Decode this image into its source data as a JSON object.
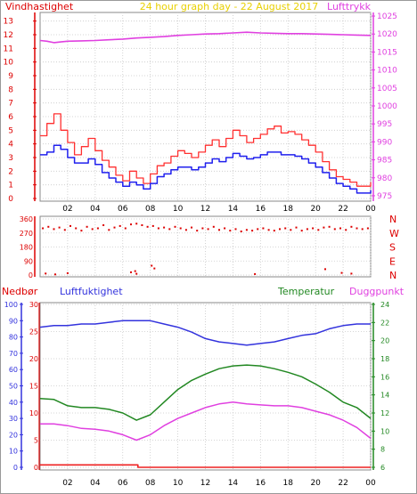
{
  "header": {
    "left_label": "Vindhastighet",
    "title": "24 hour graph day - 22 August 2017",
    "right_label": "Lufttrykk"
  },
  "labels": {
    "precip": "Nedbør",
    "humidity": "Luftfuktighet",
    "temperature": "Temperatur",
    "dewpoint": "Duggpunkt"
  },
  "colors": {
    "wind_axis": "#dd0000",
    "pressure": "#e040e0",
    "gust": "#ff3030",
    "wind_avg": "#2020ee",
    "direction": "#dd0000",
    "humidity": "#3333dd",
    "temperature": "#228822",
    "dewpoint": "#e040e0",
    "precip": "#ee2222",
    "title": "#e8d000",
    "grid": "#c9c9c9"
  },
  "chart_data": [
    {
      "type": "line",
      "title": "24 hour graph day - 22 August 2017",
      "x_ticks": [
        "02",
        "04",
        "06",
        "08",
        "10",
        "12",
        "14",
        "16",
        "18",
        "20",
        "22",
        "00"
      ],
      "xlim": [
        0,
        24
      ],
      "y_left": {
        "label": "Vindhastighet",
        "ticks": [
          0,
          1,
          2,
          3,
          4,
          5,
          6,
          7,
          8,
          9,
          10,
          11,
          12,
          13
        ],
        "ylim": [
          0,
          13.5
        ]
      },
      "y_right": {
        "label": "Lufttrykk",
        "ticks": [
          975,
          980,
          985,
          990,
          995,
          1000,
          1005,
          1010,
          1015,
          1020,
          1025
        ],
        "ylim": [
          973.5,
          1026
        ]
      },
      "series": [
        {
          "name": "Lufttrykk",
          "axis": "right",
          "x": [
            0,
            0.5,
            1,
            1.5,
            2,
            3,
            4,
            5,
            6,
            7,
            8,
            9,
            10,
            11,
            12,
            13,
            14,
            15,
            16,
            17,
            18,
            19,
            20,
            21,
            22,
            23,
            24
          ],
          "values": [
            1018.2,
            1018.0,
            1017.6,
            1017.8,
            1018.0,
            1018.1,
            1018.2,
            1018.4,
            1018.6,
            1018.9,
            1019.1,
            1019.3,
            1019.6,
            1019.8,
            1020.0,
            1020.1,
            1020.3,
            1020.5,
            1020.3,
            1020.2,
            1020.1,
            1020.1,
            1020.0,
            1019.9,
            1019.8,
            1019.7,
            1019.6
          ]
        },
        {
          "name": "Vindkast",
          "axis": "left",
          "x": [
            0,
            0.5,
            1,
            1.5,
            2,
            2.5,
            3,
            3.5,
            4,
            4.5,
            5,
            5.5,
            6,
            6.5,
            7,
            7.5,
            8,
            8.5,
            9,
            9.5,
            10,
            10.5,
            11,
            11.5,
            12,
            12.5,
            13,
            13.5,
            14,
            14.5,
            15,
            15.5,
            16,
            16.5,
            17,
            17.5,
            18,
            18.5,
            19,
            19.5,
            20,
            20.5,
            21,
            21.5,
            22,
            22.5,
            23,
            23.5,
            24
          ],
          "values": [
            4.6,
            5.5,
            6.2,
            5.0,
            4.1,
            3.2,
            3.8,
            4.4,
            3.5,
            2.8,
            2.3,
            1.7,
            1.3,
            2.0,
            1.5,
            1.1,
            1.8,
            2.4,
            2.6,
            3.1,
            3.5,
            3.3,
            3.0,
            3.4,
            3.9,
            4.3,
            3.8,
            4.4,
            5.0,
            4.6,
            4.1,
            4.4,
            4.7,
            5.1,
            5.3,
            4.8,
            4.9,
            4.7,
            4.3,
            3.9,
            3.4,
            2.7,
            2.1,
            1.6,
            1.4,
            1.2,
            0.9,
            0.9,
            1.2
          ]
        },
        {
          "name": "Middelvind",
          "axis": "left",
          "x": [
            0,
            0.5,
            1,
            1.5,
            2,
            2.5,
            3,
            3.5,
            4,
            4.5,
            5,
            5.5,
            6,
            6.5,
            7,
            7.5,
            8,
            8.5,
            9,
            9.5,
            10,
            10.5,
            11,
            11.5,
            12,
            12.5,
            13,
            13.5,
            14,
            14.5,
            15,
            15.5,
            16,
            16.5,
            17,
            17.5,
            18,
            18.5,
            19,
            19.5,
            20,
            20.5,
            21,
            21.5,
            22,
            22.5,
            23,
            23.5,
            24
          ],
          "values": [
            3.2,
            3.4,
            3.9,
            3.6,
            3.0,
            2.6,
            2.6,
            2.9,
            2.5,
            1.9,
            1.5,
            1.2,
            0.9,
            1.2,
            1.0,
            0.7,
            1.1,
            1.6,
            1.8,
            2.1,
            2.3,
            2.3,
            2.1,
            2.3,
            2.6,
            2.9,
            2.7,
            3.0,
            3.3,
            3.1,
            2.9,
            3.0,
            3.2,
            3.4,
            3.4,
            3.2,
            3.2,
            3.1,
            2.9,
            2.6,
            2.3,
            1.9,
            1.5,
            1.1,
            0.9,
            0.7,
            0.4,
            0.4,
            0.6
          ]
        }
      ]
    },
    {
      "type": "scatter",
      "title": "",
      "xlim": [
        0,
        24
      ],
      "y_ticks": [
        0,
        90,
        180,
        270,
        360
      ],
      "ylim": [
        0,
        360
      ],
      "compass_labels": [
        "N",
        "W",
        "S",
        "E",
        "N"
      ],
      "series": [
        {
          "name": "Vindretning",
          "x": [
            0.2,
            0.6,
            1.0,
            1.4,
            1.8,
            2.2,
            2.6,
            3.0,
            3.4,
            3.8,
            4.2,
            4.6,
            5.0,
            5.4,
            5.8,
            6.2,
            6.6,
            7.0,
            7.4,
            7.8,
            8.2,
            8.6,
            9.0,
            9.4,
            9.8,
            10.2,
            10.6,
            11.0,
            11.4,
            11.8,
            12.2,
            12.6,
            13.0,
            13.4,
            13.8,
            14.2,
            14.6,
            15.0,
            15.4,
            15.8,
            16.2,
            16.6,
            17.0,
            17.4,
            17.8,
            18.2,
            18.6,
            19.0,
            19.4,
            19.8,
            20.2,
            20.6,
            21.0,
            21.4,
            21.8,
            22.2,
            22.6,
            23.0,
            23.4,
            23.8
          ],
          "values": [
            300,
            310,
            295,
            305,
            290,
            315,
            300,
            285,
            310,
            295,
            300,
            320,
            290,
            305,
            315,
            300,
            325,
            330,
            320,
            310,
            315,
            300,
            305,
            295,
            310,
            300,
            290,
            305,
            285,
            300,
            295,
            310,
            290,
            300,
            285,
            295,
            280,
            290,
            285,
            295,
            300,
            290,
            285,
            295,
            300,
            290,
            305,
            285,
            295,
            300,
            290,
            305,
            310,
            295,
            300,
            290,
            310,
            300,
            295,
            300
          ]
        },
        {
          "name": "Vindretning (nord)",
          "x": [
            0.4,
            1.1,
            2.0,
            6.6,
            6.9,
            7.0,
            8.1,
            8.3,
            15.6,
            20.7,
            21.9,
            22.6
          ],
          "values": [
            10,
            4,
            12,
            18,
            25,
            8,
            60,
            42,
            6,
            38,
            14,
            9
          ]
        }
      ]
    },
    {
      "type": "line",
      "title": "",
      "x_ticks": [
        "02",
        "04",
        "06",
        "08",
        "10",
        "12",
        "14",
        "16",
        "18",
        "20",
        "22",
        "00"
      ],
      "xlim": [
        0,
        24
      ],
      "y_far_left": {
        "label": "Nedbør",
        "ticks": [
          0,
          10,
          20,
          30,
          40,
          50,
          60,
          70,
          80,
          90,
          100
        ],
        "ylim": [
          0,
          100
        ]
      },
      "y_left": {
        "label": "Luftfuktighet",
        "ticks": [
          0,
          5,
          10,
          15,
          20,
          25,
          30
        ],
        "ylim": [
          0,
          30
        ]
      },
      "y_right": {
        "label": "Temperatur",
        "ticks": [
          6,
          8,
          10,
          12,
          14,
          16,
          18,
          20,
          22,
          24
        ],
        "ylim": [
          6,
          24
        ]
      },
      "series": [
        {
          "name": "Luftfuktighet",
          "axis": "far_left",
          "x": [
            0,
            1,
            2,
            3,
            4,
            5,
            6,
            7,
            8,
            9,
            10,
            11,
            12,
            13,
            14,
            15,
            16,
            17,
            18,
            19,
            20,
            21,
            22,
            23,
            24
          ],
          "values": [
            86,
            87,
            87,
            88,
            88,
            89,
            90,
            90,
            90,
            88,
            86,
            83,
            79,
            77,
            76,
            75,
            76,
            77,
            79,
            81,
            82,
            85,
            87,
            88,
            88
          ]
        },
        {
          "name": "Temperatur",
          "axis": "right",
          "x": [
            0,
            1,
            2,
            3,
            4,
            5,
            6,
            7,
            8,
            9,
            10,
            11,
            12,
            13,
            14,
            15,
            16,
            17,
            18,
            19,
            20,
            21,
            22,
            23,
            24
          ],
          "values": [
            13.6,
            13.5,
            12.8,
            12.6,
            12.6,
            12.4,
            12.0,
            11.2,
            11.8,
            13.2,
            14.6,
            15.6,
            16.3,
            16.9,
            17.2,
            17.3,
            17.2,
            16.9,
            16.5,
            16.0,
            15.2,
            14.3,
            13.2,
            12.6,
            11.4
          ]
        },
        {
          "name": "Duggpunkt",
          "axis": "right",
          "x": [
            0,
            1,
            2,
            3,
            4,
            5,
            6,
            7,
            8,
            9,
            10,
            11,
            12,
            13,
            14,
            15,
            16,
            17,
            18,
            19,
            20,
            21,
            22,
            23,
            24
          ],
          "values": [
            10.8,
            10.8,
            10.6,
            10.3,
            10.2,
            10.0,
            9.6,
            9.0,
            9.6,
            10.6,
            11.4,
            12.0,
            12.6,
            13.0,
            13.2,
            13.0,
            12.9,
            12.8,
            12.8,
            12.6,
            12.2,
            11.8,
            11.2,
            10.4,
            9.2
          ]
        },
        {
          "name": "Nedbør",
          "axis": "far_left",
          "x": [
            0,
            3,
            6,
            7,
            7.1,
            8,
            12,
            16,
            20,
            24
          ],
          "values": [
            1.5,
            1.5,
            1.5,
            1.5,
            0,
            0,
            0,
            0,
            0,
            0
          ]
        }
      ]
    }
  ]
}
